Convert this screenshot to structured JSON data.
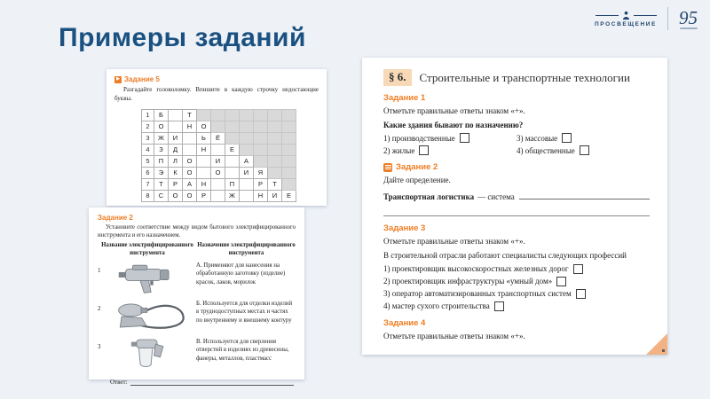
{
  "slide": {
    "title": "Примеры заданий",
    "header": {
      "publisher_logo_text": "ПРОСВЕЩЕНИЕ",
      "anniversary_text": "95"
    }
  },
  "crossword_card": {
    "task_label": "Задание 5",
    "instruction": "Разгадайте головоломку. Впишите в каждую строчку недостающие буквы.",
    "grid": {
      "total_cols": 10,
      "rows": [
        {
          "num": "1",
          "cells": [
            "Б",
            "",
            "Т"
          ]
        },
        {
          "num": "2",
          "cells": [
            "О",
            "",
            "Н",
            "О"
          ]
        },
        {
          "num": "3",
          "cells": [
            "Ж",
            "И",
            "",
            "Ь",
            "Ё"
          ]
        },
        {
          "num": "4",
          "cells": [
            "З",
            "Д",
            "",
            "Н",
            "",
            "Е"
          ]
        },
        {
          "num": "5",
          "cells": [
            "П",
            "Л",
            "О",
            "",
            "И",
            "",
            "А"
          ]
        },
        {
          "num": "6",
          "cells": [
            "Э",
            "К",
            "О",
            "",
            "О",
            "",
            "И",
            "Я"
          ]
        },
        {
          "num": "7",
          "cells": [
            "Т",
            "Р",
            "А",
            "Н",
            "",
            "П",
            "",
            "Р",
            "Т"
          ]
        },
        {
          "num": "8",
          "cells": [
            "С",
            "О",
            "О",
            "Р",
            "",
            "Ж",
            "",
            "Н",
            "И",
            "Е"
          ]
        }
      ]
    }
  },
  "tools_card": {
    "task_label": "Задание 2",
    "instruction": "Установите соответствие между видом бытового электрифицированного инструмента и его назначением.",
    "col1_header": "Название электрифицированного инструмента",
    "col2_header": "Назначение электрифицированного инструмента",
    "rows": [
      {
        "num": "1",
        "tool": "electric-drill",
        "text": "А. Применяют для нанесения на обработанную заготовку (изделие) красок, лаков, морилок"
      },
      {
        "num": "2",
        "tool": "engraver-flexible-shaft",
        "text": "Б. Используется для отделки изделий в труднодоступных местах и частях по внутреннему и внешнему контуру"
      },
      {
        "num": "3",
        "tool": "spray-gun",
        "text": "В. Используется для сверления отверстий в изделиях из древесины, фанеры, металлов, пластмасс"
      }
    ],
    "answer_label": "Ответ:"
  },
  "workbook_page": {
    "section_number": "§ 6.",
    "section_title": "Строительные и транспортные технологии",
    "tasks": [
      {
        "label": "Задание 1",
        "instruction": "Отметьте правильные ответы знаком «+».",
        "question": "Какие здания бывают по назначению?",
        "options": [
          "1) производственные",
          "2) жилые",
          "3) массовые",
          "4) общественные"
        ]
      },
      {
        "label": "Задание 2",
        "instruction": "Дайте определение.",
        "term": "Транспортная логистика",
        "definition_start": "— система"
      },
      {
        "label": "Задание 3",
        "instruction": "Отметьте правильные ответы знаком «+».",
        "question": "В строительной отрасли работают специалисты следующих профессий",
        "options": [
          "1) проектировщик высокоскоростных железных дорог",
          "2) проектировщик инфраструктуры «умный дом»",
          "3) оператор автоматизированных транспортных систем",
          "4) мастер сухого строительства"
        ]
      },
      {
        "label": "Задание 4",
        "instruction": "Отметьте правильные ответы знаком «+»."
      }
    ]
  }
}
